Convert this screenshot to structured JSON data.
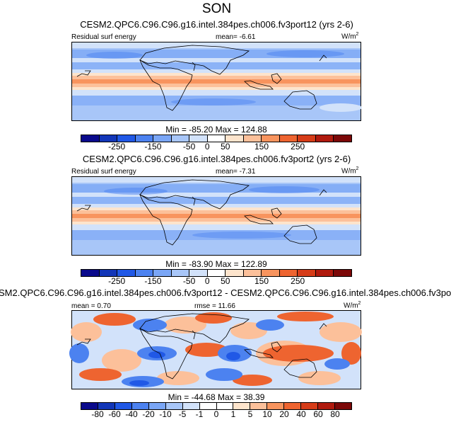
{
  "title": "SON",
  "panels": [
    {
      "title": "CESM2.QPC6.C96.C96.g16.intel.384pes.ch006.fv3port12 (yrs 2-6)",
      "left_label": "Residual surf energy",
      "mean_label": "mean=",
      "mean_value": "-6.61",
      "units": "W/m",
      "units_exp": "2",
      "min_label": "Min =",
      "min_value": "-85.20",
      "max_label": "Max =",
      "max_value": "124.88"
    },
    {
      "title": "CESM2.QPC6.C96.C96.g16.intel.384pes.ch006.fv3port2 (yrs 2-6)",
      "left_label": "Residual surf energy",
      "mean_label": "mean=",
      "mean_value": "-7.31",
      "units": "W/m",
      "units_exp": "2",
      "min_label": "Min =",
      "min_value": "-83.90",
      "max_label": "Max =",
      "max_value": "122.89"
    },
    {
      "title": "SM2.QPC6.C96.C96.g16.intel.384pes.ch006.fv3port12 - CESM2.QPC6.C96.C96.g16.intel.384pes.ch006.fv3po",
      "mean_label": "mean =",
      "mean_value": "0.70",
      "rmse_label": "rmse =",
      "rmse_value": "11.66",
      "units": "W/m",
      "units_exp": "2",
      "min_label": "Min =",
      "min_value": "-44.68",
      "max_label": "Max =",
      "max_value": "38.39"
    }
  ],
  "colorbars": {
    "abs": {
      "colors": [
        "#0a0a8c",
        "#1236b8",
        "#2058e6",
        "#4c82f0",
        "#7aa6f6",
        "#a8c6f8",
        "#d2e2fa",
        "#ffffff",
        "#fde4cc",
        "#fcc09a",
        "#f8945e",
        "#ee6430",
        "#d63c18",
        "#b01a0e",
        "#7c0808"
      ],
      "labels": [
        "-250",
        "-150",
        "-50",
        "0",
        "50",
        "150",
        "250"
      ]
    },
    "diff": {
      "colors": [
        "#0a0a8c",
        "#1236b8",
        "#2058e6",
        "#4c82f0",
        "#7aa6f6",
        "#a8c6f8",
        "#d2e2fa",
        "#ffffff",
        "#ffffff",
        "#fde4cc",
        "#fcc09a",
        "#f8945e",
        "#ee6430",
        "#d63c18",
        "#b01a0e",
        "#7c0808"
      ],
      "labels": [
        "-80",
        "-60",
        "-40",
        "-20",
        "-10",
        "-5",
        "-1",
        "0",
        "1",
        "5",
        "10",
        "20",
        "40",
        "60",
        "80"
      ]
    }
  }
}
